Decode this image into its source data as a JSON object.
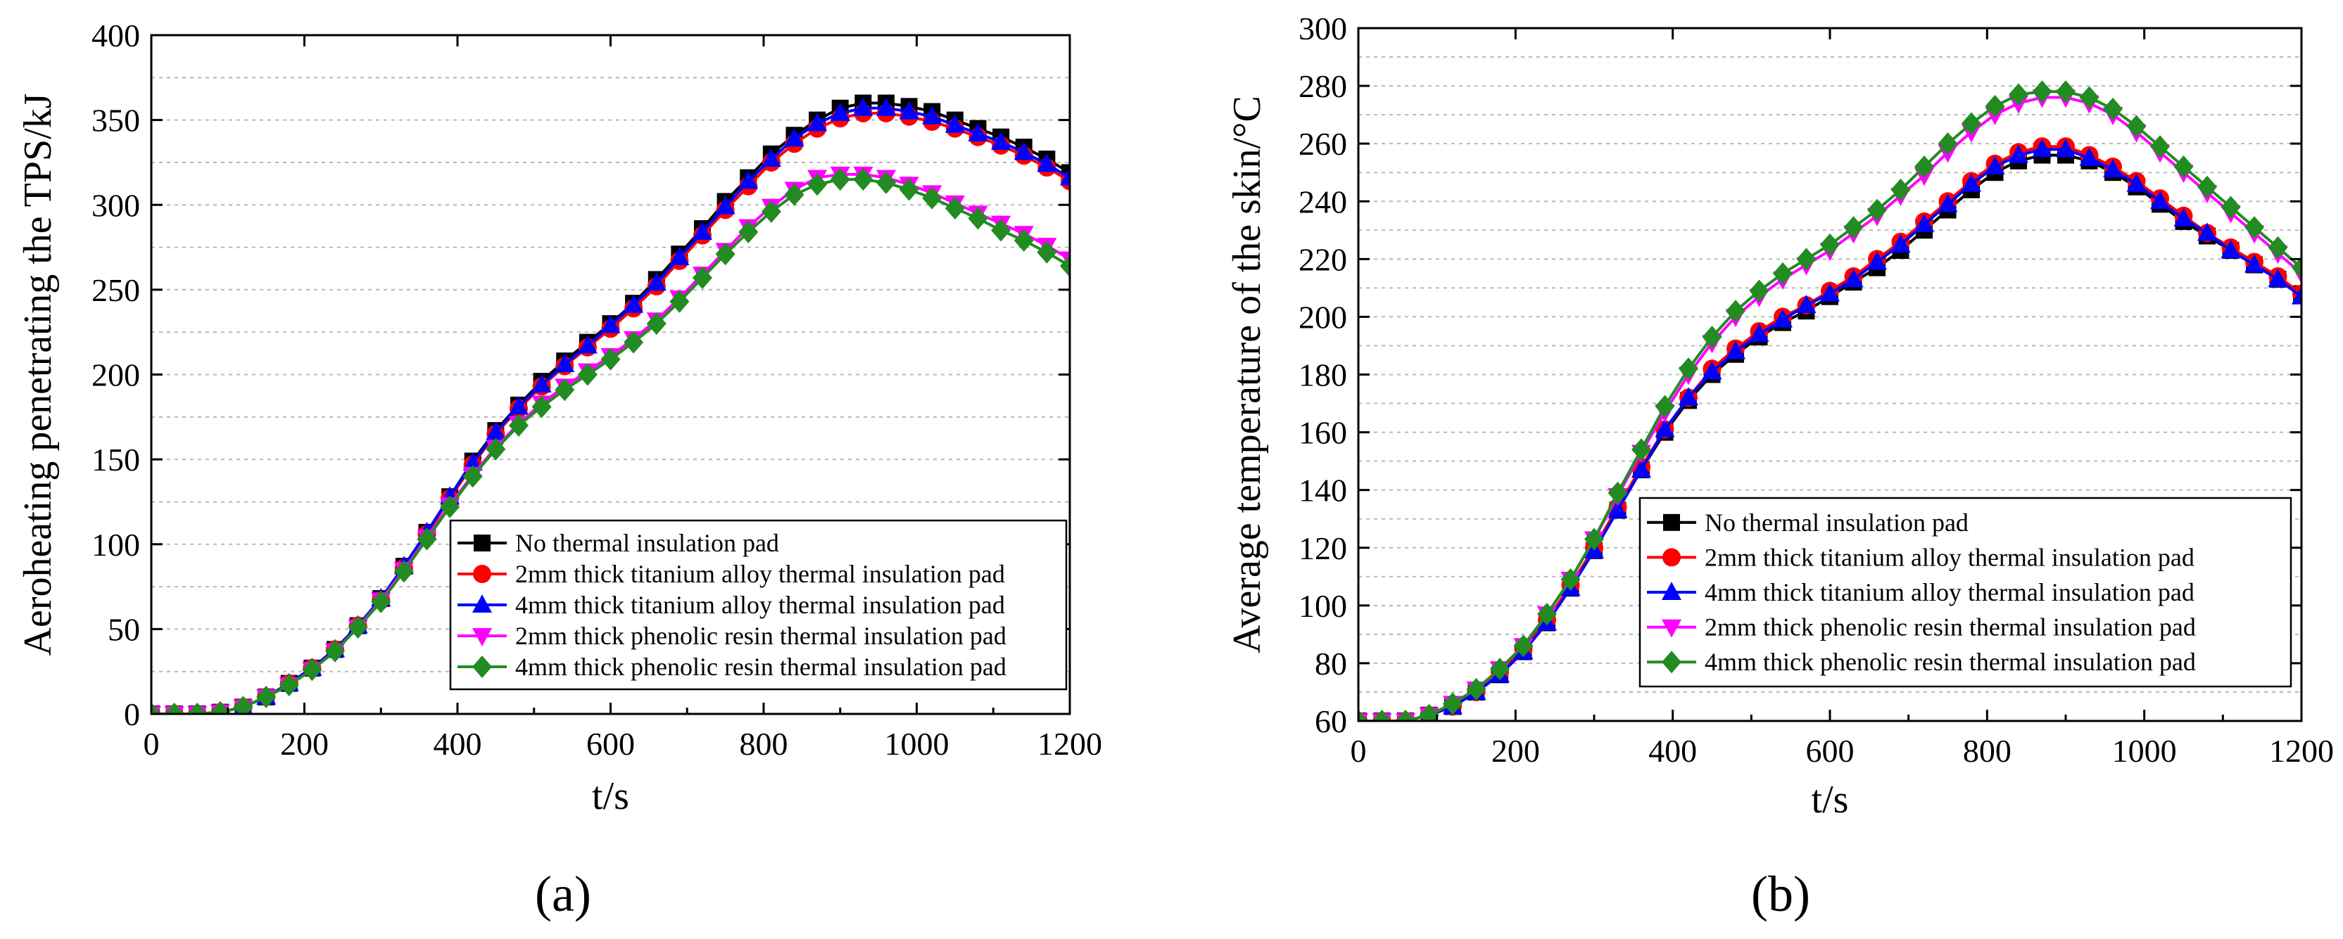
{
  "chart_data": [
    {
      "type": "line",
      "panel_label": "(a)",
      "title": "",
      "xlabel": "t/s",
      "ylabel": "Aeroheating penetrating the TPS/kJ",
      "xlim": [
        0,
        1200
      ],
      "ylim": [
        0,
        400
      ],
      "xticks": [
        0,
        200,
        400,
        600,
        800,
        1000,
        1200
      ],
      "yticks": [
        0,
        50,
        100,
        150,
        200,
        250,
        300,
        350,
        400
      ],
      "grid": true,
      "legend_position": "bottom-right",
      "x": [
        0,
        30,
        60,
        90,
        120,
        150,
        180,
        210,
        240,
        270,
        300,
        330,
        360,
        390,
        420,
        450,
        480,
        510,
        540,
        570,
        600,
        630,
        660,
        690,
        720,
        750,
        780,
        810,
        840,
        870,
        900,
        930,
        960,
        990,
        1020,
        1050,
        1080,
        1110,
        1140,
        1170,
        1200
      ],
      "series": [
        {
          "name": "No thermal insulation pad",
          "color": "#000000",
          "marker": "square",
          "values": [
            0,
            0,
            0,
            1,
            4,
            10,
            18,
            27,
            38,
            52,
            68,
            87,
            107,
            128,
            149,
            167,
            182,
            196,
            208,
            219,
            230,
            242,
            256,
            271,
            286,
            302,
            316,
            330,
            341,
            350,
            357,
            360,
            360,
            358,
            355,
            350,
            345,
            340,
            334,
            327,
            319
          ]
        },
        {
          "name": "2mm thick titanium alloy thermal insulation pad",
          "color": "#ff0000",
          "marker": "circle",
          "values": [
            0,
            0,
            0,
            1,
            4,
            10,
            18,
            27,
            38,
            52,
            67,
            86,
            106,
            127,
            147,
            165,
            180,
            193,
            205,
            216,
            227,
            239,
            252,
            267,
            282,
            297,
            311,
            325,
            336,
            345,
            351,
            354,
            354,
            352,
            349,
            345,
            340,
            335,
            329,
            322,
            314
          ]
        },
        {
          "name": "4mm thick titanium alloy thermal insulation pad",
          "color": "#0000ff",
          "marker": "triangle-up",
          "values": [
            0,
            0,
            0,
            1,
            4,
            10,
            18,
            27,
            38,
            52,
            68,
            87,
            107,
            128,
            148,
            166,
            181,
            194,
            206,
            217,
            229,
            241,
            254,
            269,
            284,
            299,
            314,
            327,
            339,
            348,
            354,
            357,
            357,
            355,
            352,
            347,
            342,
            337,
            331,
            324,
            316
          ]
        },
        {
          "name": "2mm thick phenolic resin thermal insulation pad",
          "color": "#ff00ff",
          "marker": "triangle-down",
          "values": [
            0,
            0,
            0,
            1,
            4,
            10,
            17,
            26,
            37,
            51,
            67,
            85,
            104,
            123,
            141,
            157,
            171,
            183,
            193,
            202,
            211,
            221,
            232,
            245,
            259,
            273,
            287,
            299,
            309,
            316,
            318,
            318,
            316,
            312,
            307,
            301,
            295,
            289,
            283,
            276,
            268
          ]
        },
        {
          "name": "4mm thick phenolic resin thermal insulation pad",
          "color": "#228b22",
          "marker": "diamond",
          "values": [
            0,
            0,
            0,
            1,
            4,
            10,
            17,
            26,
            37,
            51,
            66,
            84,
            103,
            122,
            140,
            156,
            170,
            181,
            191,
            200,
            209,
            219,
            230,
            243,
            257,
            271,
            284,
            296,
            306,
            312,
            315,
            315,
            313,
            309,
            304,
            298,
            292,
            285,
            279,
            272,
            264
          ]
        }
      ]
    },
    {
      "type": "line",
      "panel_label": "(b)",
      "title": "",
      "xlabel": "t/s",
      "ylabel": "Average temperature of the skin/°C",
      "xlim": [
        0,
        1200
      ],
      "ylim": [
        60,
        300
      ],
      "xticks": [
        0,
        200,
        400,
        600,
        800,
        1000,
        1200
      ],
      "yticks": [
        60,
        80,
        100,
        120,
        140,
        160,
        180,
        200,
        220,
        240,
        260,
        280,
        300
      ],
      "grid": true,
      "legend_position": "bottom-right",
      "x": [
        0,
        30,
        60,
        90,
        120,
        150,
        180,
        210,
        240,
        270,
        300,
        330,
        360,
        390,
        420,
        450,
        480,
        510,
        540,
        570,
        600,
        630,
        660,
        690,
        720,
        750,
        780,
        810,
        840,
        870,
        900,
        930,
        960,
        990,
        1020,
        1050,
        1080,
        1110,
        1140,
        1170,
        1200
      ],
      "series": [
        {
          "name": "No thermal insulation pad",
          "color": "#000000",
          "marker": "square",
          "values": [
            60,
            60,
            60,
            62,
            65,
            70,
            76,
            84,
            94,
            106,
            119,
            133,
            147,
            160,
            171,
            180,
            187,
            193,
            198,
            202,
            207,
            212,
            217,
            223,
            230,
            237,
            244,
            250,
            254,
            256,
            256,
            254,
            250,
            245,
            239,
            233,
            228,
            223,
            218,
            213,
            208
          ]
        },
        {
          "name": "2mm thick titanium alloy thermal insulation pad",
          "color": "#ff0000",
          "marker": "circle",
          "values": [
            60,
            60,
            60,
            62,
            65,
            70,
            77,
            85,
            95,
            107,
            120,
            134,
            148,
            161,
            172,
            182,
            189,
            195,
            200,
            204,
            209,
            214,
            220,
            226,
            233,
            240,
            247,
            253,
            257,
            259,
            259,
            256,
            252,
            247,
            241,
            235,
            229,
            224,
            219,
            214,
            208
          ]
        },
        {
          "name": "4mm thick titanium alloy thermal insulation pad",
          "color": "#0000ff",
          "marker": "triangle-up",
          "values": [
            60,
            60,
            60,
            62,
            65,
            70,
            76,
            84,
            94,
            106,
            119,
            133,
            147,
            161,
            172,
            181,
            188,
            194,
            199,
            204,
            208,
            213,
            219,
            225,
            232,
            239,
            246,
            252,
            256,
            258,
            258,
            255,
            251,
            246,
            240,
            234,
            229,
            223,
            218,
            213,
            207
          ]
        },
        {
          "name": "2mm thick phenolic resin thermal insulation pad",
          "color": "#ff00ff",
          "marker": "triangle-down",
          "values": [
            60,
            60,
            60,
            62,
            66,
            71,
            78,
            86,
            97,
            109,
            123,
            138,
            153,
            167,
            180,
            191,
            200,
            207,
            213,
            218,
            223,
            229,
            235,
            242,
            249,
            257,
            264,
            270,
            274,
            276,
            276,
            274,
            270,
            264,
            257,
            250,
            243,
            236,
            229,
            222,
            215
          ]
        },
        {
          "name": "4mm thick phenolic resin thermal insulation pad",
          "color": "#228b22",
          "marker": "diamond",
          "values": [
            60,
            60,
            60,
            62,
            66,
            71,
            78,
            86,
            97,
            109,
            123,
            139,
            154,
            169,
            182,
            193,
            202,
            209,
            215,
            220,
            225,
            231,
            237,
            244,
            252,
            260,
            267,
            273,
            277,
            278,
            278,
            276,
            272,
            266,
            259,
            252,
            245,
            238,
            231,
            224,
            217
          ]
        }
      ]
    }
  ]
}
